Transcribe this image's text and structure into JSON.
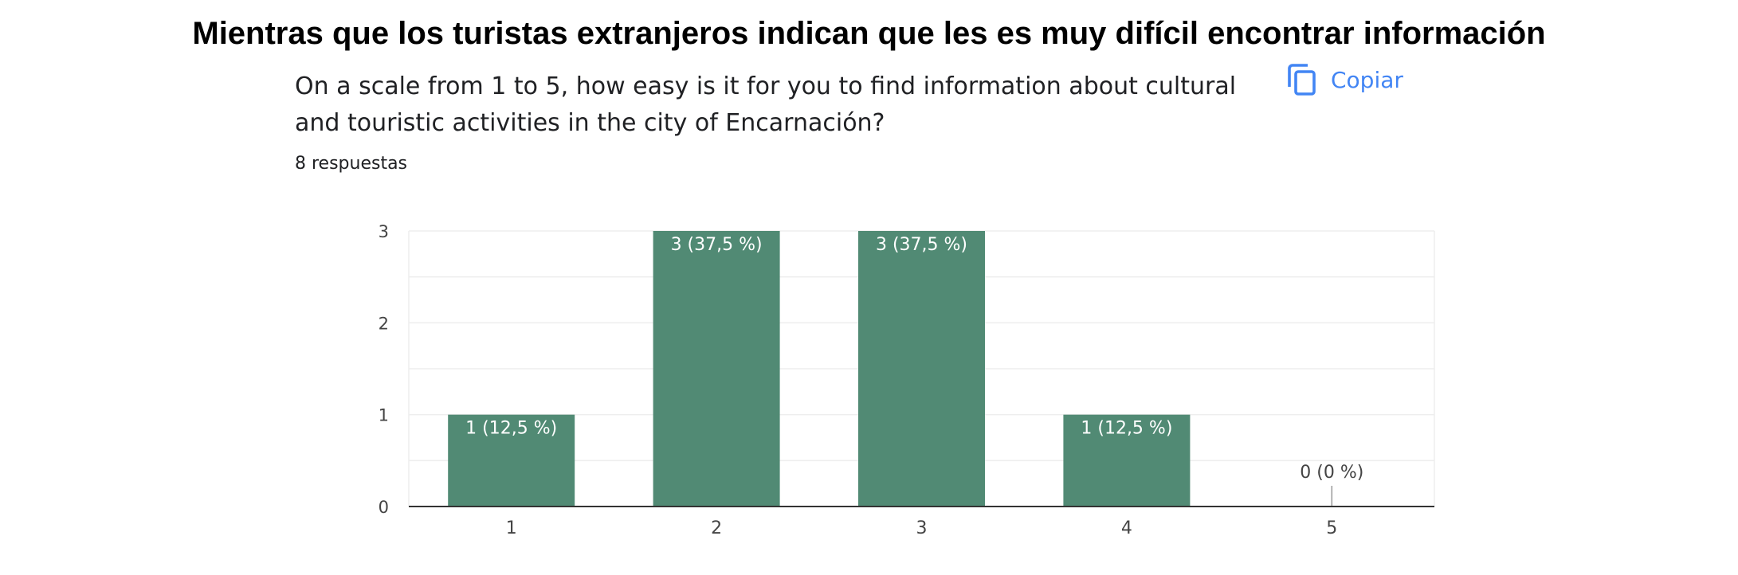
{
  "headline": "Mientras que los turistas extranjeros indican que les es muy difícil encontrar información",
  "question": "On a scale from 1 to 5, how easy is it for you to find information about cultural and touristic activities in the city of Encarnación?",
  "responses_label": "8 respuestas",
  "copy_label": "Copiar",
  "colors": {
    "bar": "#518a74",
    "accent": "#4285f4",
    "grid": "#eeeeee",
    "axis": "#333333"
  },
  "chart_data": {
    "type": "bar",
    "categories": [
      "1",
      "2",
      "3",
      "4",
      "5"
    ],
    "values": [
      1,
      3,
      3,
      1,
      0
    ],
    "data_labels": [
      "1 (12,5 %)",
      "3 (37,5 %)",
      "3 (37,5 %)",
      "1 (12,5 %)",
      "0 (0 %)"
    ],
    "y_ticks": [
      "0",
      "1",
      "2",
      "3"
    ],
    "ylim": [
      0,
      3
    ],
    "grid": true,
    "xlabel": "",
    "ylabel": ""
  }
}
